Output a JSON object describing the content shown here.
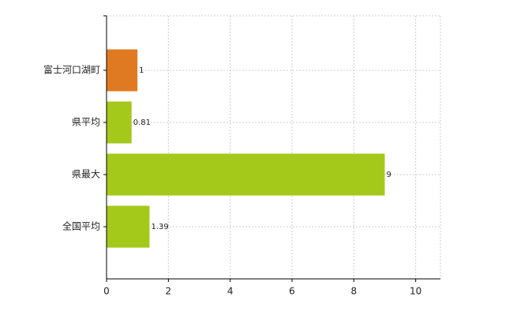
{
  "chart_data": {
    "type": "barh",
    "categories": [
      "富士河口湖町",
      "県平均",
      "県最大",
      "全国平均"
    ],
    "values": [
      1,
      0.81,
      9,
      1.39
    ],
    "colors": [
      "#e07a22",
      "#a4c91a",
      "#a4c91a",
      "#a4c91a"
    ],
    "xlim": [
      0,
      10.8
    ],
    "xticks": [
      0,
      2,
      4,
      6,
      8,
      10
    ],
    "grid": true
  }
}
